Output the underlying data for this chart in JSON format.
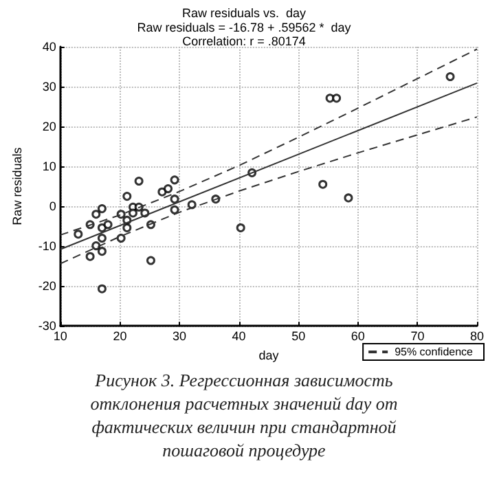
{
  "chart_data": {
    "type": "scatter",
    "title": "Raw residuals vs.  day",
    "subtitle": "Raw residuals = -16.78 + .59562 *  day\nCorrelation: r = .80174",
    "xlabel": "day",
    "ylabel": "Raw residuals",
    "xlim": [
      10,
      80
    ],
    "xticks": [
      10,
      20,
      30,
      40,
      50,
      60,
      70,
      80
    ],
    "ylim": [
      -30,
      40
    ],
    "yticks": [
      -30,
      -20,
      -10,
      0,
      10,
      20,
      30,
      40
    ],
    "grid": true,
    "legend": "bottom right",
    "marker": "circle",
    "annotations": [
      "Рисунок 3. Регрессионная зависимость отклонения расчетных значений day от фактических величин при стандартной пошаговой процедуре"
    ],
    "series": [
      {
        "color": "#000000",
        "x": [
          13,
          15,
          15,
          16,
          16,
          17,
          17,
          17,
          17,
          17,
          18,
          20.2,
          20.2,
          21.2,
          21.2,
          21.2,
          22.2,
          22.2,
          23.2,
          23.2,
          24.2,
          25.2,
          25.2,
          27.1,
          28.1,
          29.2,
          29.2,
          29.2,
          32.1,
          36.1,
          40.3,
          42.2,
          55.3,
          56.4,
          54.1,
          58.4,
          75.5
        ],
        "values": [
          -7,
          -4.6,
          -12.6,
          -2,
          -9.9,
          -0.6,
          -5.4,
          -8,
          -11.3,
          -20.7,
          -4.6,
          -2,
          -8,
          2.5,
          -3.5,
          -5.4,
          -0.2,
          -1.7,
          6.3,
          -0.2,
          -1.7,
          -4.6,
          -13.6,
          3.6,
          4.4,
          6.6,
          1.8,
          -0.9,
          0.4,
          1.8,
          -5.4,
          8.4,
          27.1,
          27.1,
          5.5,
          2.1,
          32.5
        ]
      },
      {
        "type": "line",
        "color": "#333333",
        "line_style": "solid",
        "marker": "none",
        "x": [
          10,
          80
        ],
        "values": [
          -10.8,
          30.9
        ]
      },
      {
        "type": "line",
        "name": "95% confidence",
        "color": "#333333",
        "line_style": "dashed",
        "marker": "none",
        "x": [
          10,
          20,
          30,
          40,
          50,
          60,
          70,
          80
        ],
        "values": [
          -7.2,
          -2.2,
          3.7,
          10.2,
          17.3,
          24.6,
          32.0,
          39.4
        ]
      },
      {
        "type": "line",
        "color": "#333333",
        "line_style": "dashed",
        "marker": "none",
        "x": [
          10,
          20,
          30,
          40,
          50,
          60,
          70,
          80
        ],
        "values": [
          -14.4,
          -7.6,
          -1.5,
          3.8,
          8.7,
          13.4,
          17.9,
          22.4
        ]
      }
    ]
  }
}
